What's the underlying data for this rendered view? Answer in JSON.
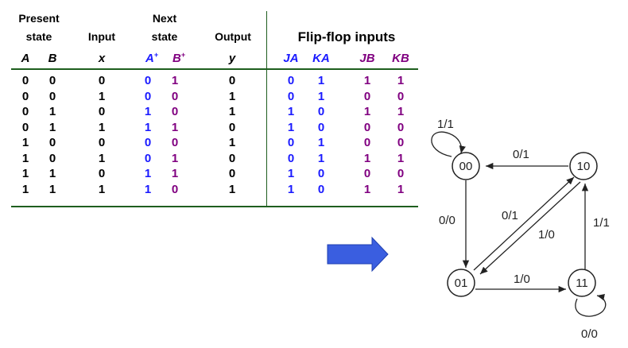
{
  "colors": {
    "blue": "#1a1aff",
    "purple": "#800080",
    "black": "#000000",
    "rule": "#1e5e1e",
    "arrow_fill": "#3a5ee0"
  },
  "headers": {
    "present_line1": "Present",
    "present_line2": "state",
    "input": "Input",
    "next_line1": "Next",
    "next_line2": "state",
    "output": "Output",
    "ff_inputs": "Flip-flop inputs"
  },
  "variables": {
    "A": "A",
    "B": "B",
    "x": "x",
    "A_next": "A",
    "B_next": "B",
    "plus": "+",
    "y": "y",
    "JA": "JA",
    "KA": "KA",
    "JB": "JB",
    "KB": "KB"
  },
  "columns": [
    {
      "key": "A",
      "color": "black"
    },
    {
      "key": "B",
      "color": "black"
    },
    {
      "key": "x",
      "color": "black"
    },
    {
      "key": "A+",
      "color": "blue"
    },
    {
      "key": "B+",
      "color": "purple"
    },
    {
      "key": "y",
      "color": "black"
    },
    {
      "key": "JA",
      "color": "blue"
    },
    {
      "key": "KA",
      "color": "blue"
    },
    {
      "key": "JB",
      "color": "purple"
    },
    {
      "key": "KB",
      "color": "purple"
    }
  ],
  "rows": [
    [
      "0",
      "0",
      "0",
      "0",
      "1",
      "0",
      "0",
      "1",
      "1",
      "1"
    ],
    [
      "0",
      "0",
      "1",
      "0",
      "0",
      "1",
      "0",
      "1",
      "0",
      "0"
    ],
    [
      "0",
      "1",
      "0",
      "1",
      "0",
      "1",
      "1",
      "0",
      "1",
      "1"
    ],
    [
      "0",
      "1",
      "1",
      "1",
      "1",
      "0",
      "1",
      "0",
      "0",
      "0"
    ],
    [
      "1",
      "0",
      "0",
      "0",
      "0",
      "1",
      "0",
      "1",
      "0",
      "0"
    ],
    [
      "1",
      "0",
      "1",
      "0",
      "1",
      "0",
      "0",
      "1",
      "1",
      "1"
    ],
    [
      "1",
      "1",
      "0",
      "1",
      "1",
      "0",
      "1",
      "0",
      "0",
      "0"
    ],
    [
      "1",
      "1",
      "1",
      "1",
      "0",
      "1",
      "1",
      "0",
      "1",
      "1"
    ]
  ],
  "state_diagram": {
    "states": [
      "00",
      "01",
      "10",
      "11"
    ],
    "transitions": [
      {
        "from": "00",
        "to": "00",
        "label": "1/1"
      },
      {
        "from": "10",
        "to": "00",
        "label": "0/1"
      },
      {
        "from": "00",
        "to": "01",
        "label": "0/0"
      },
      {
        "from": "01",
        "to": "10",
        "label": "0/1"
      },
      {
        "from": "10",
        "to": "01",
        "label": "1/0"
      },
      {
        "from": "01",
        "to": "11",
        "label": "1/0"
      },
      {
        "from": "11",
        "to": "10",
        "label": "1/1"
      },
      {
        "from": "11",
        "to": "11",
        "label": "0/0"
      }
    ]
  }
}
